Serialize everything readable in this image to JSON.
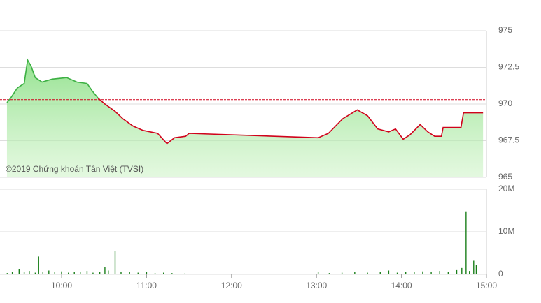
{
  "chart_data": [
    {
      "type": "line",
      "x": [
        9.357,
        9.4,
        9.48,
        9.56,
        9.6,
        9.64,
        9.69,
        9.77,
        9.89,
        10.06,
        10.18,
        10.3,
        10.36,
        10.43,
        10.51,
        10.63,
        10.72,
        10.84,
        10.96,
        11.13,
        11.24,
        11.33,
        11.46,
        11.5,
        13.02,
        13.14,
        13.31,
        13.48,
        13.6,
        13.72,
        13.85,
        13.93,
        14.02,
        14.1,
        14.22,
        14.31,
        14.39,
        14.47,
        14.49,
        14.7,
        14.73,
        14.96
      ],
      "series": [
        {
          "color": "#3cb043",
          "values": [
            970.1,
            970.4,
            971.1,
            971.4,
            973.0,
            972.6,
            971.8,
            971.5,
            971.7,
            971.8,
            971.5,
            971.4,
            970.9,
            970.4,
            null,
            null,
            null,
            null,
            null,
            null,
            null,
            null,
            null,
            null,
            null,
            null,
            null,
            null,
            null,
            null,
            null,
            null,
            null,
            null,
            null,
            null,
            null,
            null,
            null,
            null,
            null,
            null
          ]
        },
        {
          "color": "#d0021b",
          "values": [
            null,
            null,
            null,
            null,
            null,
            null,
            null,
            null,
            null,
            null,
            null,
            null,
            null,
            970.4,
            970.0,
            969.5,
            969.0,
            968.5,
            968.2,
            968.0,
            967.3,
            967.7,
            967.8,
            968.0,
            967.7,
            968.0,
            969.0,
            969.6,
            969.2,
            968.3,
            968.1,
            968.3,
            967.6,
            967.9,
            968.6,
            968.1,
            967.8,
            967.8,
            968.4,
            968.4,
            969.4,
            969.4
          ]
        }
      ],
      "area": true,
      "reference_line": {
        "value": 970.3,
        "color": "#d0021b"
      },
      "annotation": "©2019 Chứng khoán Tân Việt (TVSI)",
      "xlim": [
        9.275,
        15
      ],
      "ylim": [
        965,
        975
      ],
      "yticks": [
        975,
        972.5,
        970,
        967.5,
        965
      ],
      "grid": true
    },
    {
      "type": "bar",
      "x": [
        9.36,
        9.42,
        9.5,
        9.56,
        9.62,
        9.69,
        9.73,
        9.78,
        9.85,
        9.92,
        10.0,
        10.08,
        10.15,
        10.22,
        10.3,
        10.37,
        10.45,
        10.51,
        10.55,
        10.63,
        10.7,
        10.8,
        10.9,
        11.0,
        11.1,
        11.2,
        11.3,
        11.45,
        13.02,
        13.15,
        13.3,
        13.45,
        13.6,
        13.75,
        13.85,
        13.95,
        14.05,
        14.15,
        14.25,
        14.35,
        14.45,
        14.55,
        14.65,
        14.71,
        14.76,
        14.8,
        14.85,
        14.88
      ],
      "values": [
        300000,
        600000,
        1200000,
        500000,
        800000,
        400000,
        4200000,
        600000,
        900000,
        500000,
        700000,
        400000,
        600000,
        500000,
        800000,
        400000,
        600000,
        1800000,
        900000,
        5500000,
        500000,
        600000,
        400000,
        500000,
        300000,
        400000,
        300000,
        200000,
        600000,
        300000,
        400000,
        500000,
        400000,
        600000,
        900000,
        400000,
        600000,
        500000,
        700000,
        600000,
        800000,
        500000,
        1000000,
        1500000,
        14800000,
        800000,
        3200000,
        2200000
      ],
      "color": "#1a7f1a",
      "xlim": [
        9.275,
        15
      ],
      "ylim": [
        0,
        20000000
      ],
      "yticks": [
        {
          "value": 20000000,
          "label": "20M"
        },
        {
          "value": 10000000,
          "label": "10M"
        },
        0
      ],
      "xticks": [
        {
          "value": 10,
          "label": "10:00"
        },
        {
          "value": 11,
          "label": "11:00"
        },
        {
          "value": 12,
          "label": "12:00"
        },
        {
          "value": 13,
          "label": "13:00"
        },
        {
          "value": 14,
          "label": "14:00"
        },
        {
          "value": 15,
          "label": "15:00"
        }
      ],
      "grid": true
    }
  ]
}
